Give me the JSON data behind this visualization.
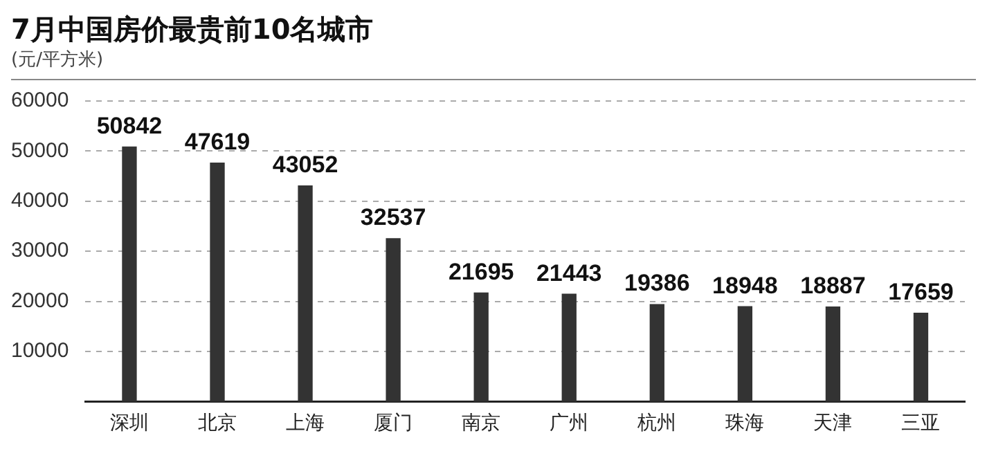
{
  "chart_data": {
    "type": "bar",
    "title": "7月中国房价最贵前10名城市",
    "ylabel": "(元/平方米)",
    "categories": [
      "深圳",
      "北京",
      "上海",
      "厦门",
      "南京",
      "广州",
      "杭州",
      "珠海",
      "天津",
      "三亚"
    ],
    "values": [
      50842,
      47619,
      43052,
      32537,
      21695,
      21443,
      19386,
      18948,
      18887,
      17659
    ],
    "color": "#333333",
    "ylim": [
      0,
      60000
    ],
    "yticks": [
      10000,
      20000,
      30000,
      40000,
      50000,
      60000
    ],
    "grid": "y",
    "data_labels": true,
    "legend": false
  }
}
